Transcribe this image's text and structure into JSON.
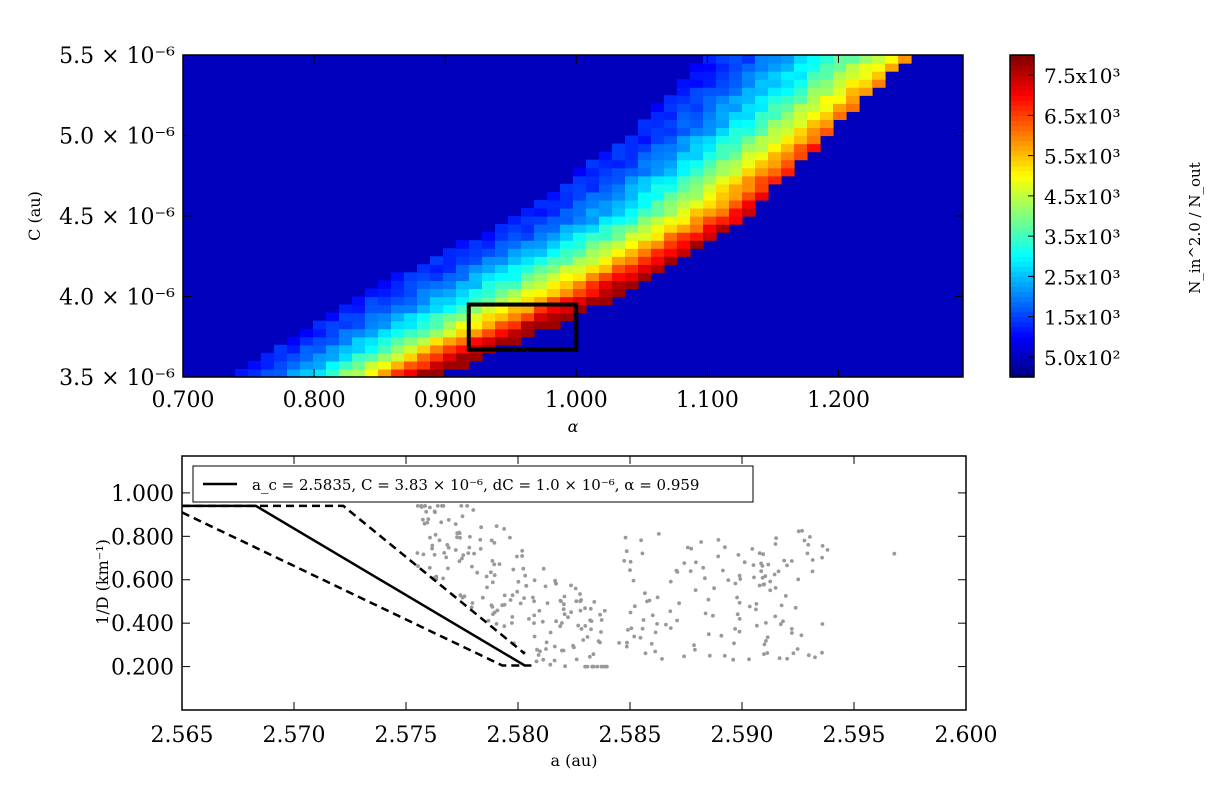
{
  "chart_data": [
    {
      "type": "heatmap",
      "xlabel": "α",
      "ylabel": "C (au)",
      "xlim": [
        0.7,
        1.295
      ],
      "ylim": [
        3.5e-06,
        5.5e-06
      ],
      "x_ticks": [
        {
          "value": 0.7,
          "label": "0.700"
        },
        {
          "value": 0.8,
          "label": "0.800"
        },
        {
          "value": 0.9,
          "label": "0.900"
        },
        {
          "value": 1.0,
          "label": "1.000"
        },
        {
          "value": 1.1,
          "label": "1.100"
        },
        {
          "value": 1.2,
          "label": "1.200"
        }
      ],
      "y_ticks": [
        {
          "value": 3.5e-06,
          "label": "3.5 × 10⁻⁶"
        },
        {
          "value": 4e-06,
          "label": "4.0 × 10⁻⁶"
        },
        {
          "value": 4.5e-06,
          "label": "4.5 × 10⁻⁶"
        },
        {
          "value": 5e-06,
          "label": "5.0 × 10⁻⁶"
        },
        {
          "value": 5.5e-06,
          "label": "5.5 × 10⁻⁶"
        }
      ],
      "colorbar": {
        "label": "N_in^2.0 / N_out",
        "min": 0,
        "max": 8000,
        "ticks": [
          {
            "value": 500,
            "label": "5.0x10²"
          },
          {
            "value": 1500,
            "label": "1.5x10³"
          },
          {
            "value": 2500,
            "label": "2.5x10³"
          },
          {
            "value": 3500,
            "label": "3.5x10³"
          },
          {
            "value": 4500,
            "label": "4.5x10³"
          },
          {
            "value": 5500,
            "label": "5.5x10³"
          },
          {
            "value": 6500,
            "label": "6.5x10³"
          },
          {
            "value": 7500,
            "label": "7.5x10³"
          }
        ]
      },
      "band": {
        "alpha_at_low_edge": [
          [
            3.5e-06,
            0.735
          ],
          [
            4e-06,
            0.83
          ],
          [
            4.5e-06,
            0.955
          ],
          [
            5e-06,
            1.04
          ],
          [
            5.5e-06,
            1.1
          ]
        ],
        "alpha_at_high_edge": [
          [
            3.5e-06,
            0.895
          ],
          [
            4e-06,
            1.03
          ],
          [
            4.5e-06,
            1.13
          ],
          [
            5e-06,
            1.19
          ],
          [
            5.5e-06,
            1.255
          ]
        ],
        "peak_value": 7800
      },
      "highlight_box": {
        "alpha": [
          0.918,
          1.0
        ],
        "C": [
          3.67e-06,
          3.95e-06
        ]
      }
    },
    {
      "type": "line",
      "xlabel": "a (au)",
      "ylabel": "1/D (km⁻¹)",
      "xlim": [
        2.565,
        2.6
      ],
      "ylim": [
        0.0,
        1.17
      ],
      "x_ticks": [
        {
          "value": 2.565,
          "label": "2.565"
        },
        {
          "value": 2.57,
          "label": "2.570"
        },
        {
          "value": 2.575,
          "label": "2.575"
        },
        {
          "value": 2.58,
          "label": "2.580"
        },
        {
          "value": 2.585,
          "label": "2.585"
        },
        {
          "value": 2.59,
          "label": "2.590"
        },
        {
          "value": 2.595,
          "label": "2.595"
        },
        {
          "value": 2.6,
          "label": "2.600"
        }
      ],
      "y_ticks": [
        {
          "value": 0.2,
          "label": "0.200"
        },
        {
          "value": 0.4,
          "label": "0.400"
        },
        {
          "value": 0.6,
          "label": "0.600"
        },
        {
          "value": 0.8,
          "label": "0.800"
        },
        {
          "value": 1.0,
          "label": "1.000"
        }
      ],
      "legend": {
        "position": "top",
        "text": "a_c = 2.5835,  C = 3.83 × 10⁻⁶,  dC = 1.0 × 10⁻⁶,  α = 0.959"
      },
      "series": [
        {
          "style": "solid",
          "x": [
            2.565,
            2.5683,
            2.5803,
            2.5806
          ],
          "y": [
            0.94,
            0.94,
            0.205,
            0.205
          ]
        },
        {
          "style": "dashed",
          "x": [
            2.565,
            2.5793,
            2.5803
          ],
          "y": [
            0.91,
            0.205,
            0.205
          ]
        },
        {
          "style": "dashed",
          "x": [
            2.565,
            2.5722,
            2.5803
          ],
          "y": [
            0.94,
            0.94,
            0.26
          ]
        }
      ],
      "scatter_color": "#999999"
    }
  ]
}
